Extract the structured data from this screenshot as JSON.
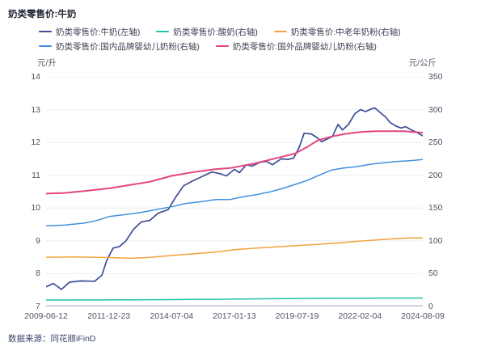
{
  "title": "奶类零售价:牛奶",
  "source_text": "数据来源：同花顺iFinD",
  "axis_units": {
    "left": "元/升",
    "right": "元/公斤"
  },
  "chart_data": {
    "type": "line",
    "title": "奶类零售价:牛奶",
    "grid": true,
    "legend_position": "top",
    "x_ticks": [
      "2009-06-12",
      "2011-12-23",
      "2014-07-04",
      "2017-01-13",
      "2019-07-19",
      "2022-02-04",
      "2024-08-09"
    ],
    "left_axis": {
      "label": "元/升",
      "min": 7,
      "max": 14,
      "ticks": [
        14,
        13,
        12,
        11,
        10,
        9,
        8,
        7
      ]
    },
    "right_axis": {
      "label": "元/公斤",
      "min": 0,
      "max": 350,
      "ticks": [
        350,
        300,
        250,
        200,
        150,
        100,
        50,
        0
      ]
    },
    "series": [
      {
        "name": "奶类零售价:牛奶(左轴)",
        "axis": "left",
        "color": "#3f4e96",
        "width": 1.7,
        "points": [
          [
            0,
            7.6
          ],
          [
            0.019,
            7.7
          ],
          [
            0.041,
            7.52
          ],
          [
            0.062,
            7.74
          ],
          [
            0.092,
            7.78
          ],
          [
            0.129,
            7.77
          ],
          [
            0.148,
            7.95
          ],
          [
            0.161,
            8.4
          ],
          [
            0.178,
            8.78
          ],
          [
            0.195,
            8.83
          ],
          [
            0.212,
            9.0
          ],
          [
            0.232,
            9.35
          ],
          [
            0.253,
            9.58
          ],
          [
            0.275,
            9.62
          ],
          [
            0.298,
            9.85
          ],
          [
            0.324,
            9.95
          ],
          [
            0.345,
            10.35
          ],
          [
            0.365,
            10.68
          ],
          [
            0.388,
            10.82
          ],
          [
            0.416,
            10.97
          ],
          [
            0.44,
            11.1
          ],
          [
            0.461,
            11.05
          ],
          [
            0.479,
            10.98
          ],
          [
            0.5,
            11.18
          ],
          [
            0.513,
            11.08
          ],
          [
            0.532,
            11.32
          ],
          [
            0.547,
            11.28
          ],
          [
            0.569,
            11.4
          ],
          [
            0.586,
            11.42
          ],
          [
            0.601,
            11.32
          ],
          [
            0.624,
            11.5
          ],
          [
            0.642,
            11.48
          ],
          [
            0.657,
            11.52
          ],
          [
            0.672,
            11.85
          ],
          [
            0.685,
            12.28
          ],
          [
            0.704,
            12.26
          ],
          [
            0.719,
            12.15
          ],
          [
            0.732,
            12.02
          ],
          [
            0.745,
            12.1
          ],
          [
            0.76,
            12.18
          ],
          [
            0.775,
            12.55
          ],
          [
            0.787,
            12.38
          ],
          [
            0.803,
            12.55
          ],
          [
            0.82,
            12.88
          ],
          [
            0.835,
            13.0
          ],
          [
            0.848,
            12.94
          ],
          [
            0.863,
            13.02
          ],
          [
            0.873,
            13.05
          ],
          [
            0.886,
            12.92
          ],
          [
            0.901,
            12.78
          ],
          [
            0.914,
            12.6
          ],
          [
            0.929,
            12.5
          ],
          [
            0.942,
            12.44
          ],
          [
            0.955,
            12.48
          ],
          [
            0.97,
            12.38
          ],
          [
            0.985,
            12.3
          ],
          [
            1,
            12.2
          ]
        ]
      },
      {
        "name": "奶类零售价:酸奶(右轴)",
        "axis": "right",
        "color": "#23c2ae",
        "width": 1.5,
        "points": [
          [
            0,
            9.9
          ],
          [
            0.15,
            10.0
          ],
          [
            0.3,
            10.4
          ],
          [
            0.45,
            11.0
          ],
          [
            0.6,
            11.8
          ],
          [
            0.75,
            12.4
          ],
          [
            0.9,
            12.8
          ],
          [
            1,
            12.8
          ]
        ]
      },
      {
        "name": "奶类零售价:中老年奶粉(右轴)",
        "axis": "right",
        "color": "#f2a23c",
        "width": 1.5,
        "points": [
          [
            0,
            75
          ],
          [
            0.08,
            75.5
          ],
          [
            0.17,
            74.5
          ],
          [
            0.22,
            73.5
          ],
          [
            0.27,
            74.5
          ],
          [
            0.31,
            76.5
          ],
          [
            0.35,
            78.5
          ],
          [
            0.42,
            81.5
          ],
          [
            0.46,
            83.5
          ],
          [
            0.5,
            86.5
          ],
          [
            0.56,
            89
          ],
          [
            0.63,
            91.5
          ],
          [
            0.67,
            93
          ],
          [
            0.72,
            94.5
          ],
          [
            0.78,
            97
          ],
          [
            0.83,
            99.5
          ],
          [
            0.88,
            101.5
          ],
          [
            0.93,
            103.5
          ],
          [
            0.97,
            104.5
          ],
          [
            1,
            104.5
          ]
        ]
      },
      {
        "name": "奶类零售价:国内品牌婴幼儿奶粉(右轴)",
        "axis": "right",
        "color": "#4190dd",
        "width": 1.5,
        "points": [
          [
            0,
            123
          ],
          [
            0.049,
            124
          ],
          [
            0.101,
            127
          ],
          [
            0.135,
            131
          ],
          [
            0.167,
            137
          ],
          [
            0.21,
            140
          ],
          [
            0.249,
            143
          ],
          [
            0.296,
            148
          ],
          [
            0.333,
            152
          ],
          [
            0.371,
            157
          ],
          [
            0.414,
            160
          ],
          [
            0.451,
            163
          ],
          [
            0.489,
            163
          ],
          [
            0.521,
            167
          ],
          [
            0.564,
            171
          ],
          [
            0.597,
            175
          ],
          [
            0.629,
            180
          ],
          [
            0.661,
            186
          ],
          [
            0.693,
            192
          ],
          [
            0.725,
            200
          ],
          [
            0.758,
            208
          ],
          [
            0.79,
            211
          ],
          [
            0.822,
            213
          ],
          [
            0.865,
            217
          ],
          [
            0.897,
            219
          ],
          [
            0.929,
            221
          ],
          [
            0.961,
            222
          ],
          [
            1,
            224
          ]
        ]
      },
      {
        "name": "奶类零售价:国外品牌婴幼儿奶粉(右轴)",
        "axis": "right",
        "color": "#e5457e",
        "width": 2,
        "points": [
          [
            0,
            172
          ],
          [
            0.049,
            173
          ],
          [
            0.101,
            176
          ],
          [
            0.167,
            180
          ],
          [
            0.221,
            185
          ],
          [
            0.275,
            190
          ],
          [
            0.333,
            199
          ],
          [
            0.393,
            205
          ],
          [
            0.446,
            209
          ],
          [
            0.489,
            211
          ],
          [
            0.554,
            218
          ],
          [
            0.618,
            227
          ],
          [
            0.661,
            233
          ],
          [
            0.693,
            243
          ],
          [
            0.721,
            253
          ],
          [
            0.758,
            259
          ],
          [
            0.794,
            263
          ],
          [
            0.833,
            266
          ],
          [
            0.875,
            267
          ],
          [
            0.918,
            267
          ],
          [
            0.951,
            267
          ],
          [
            0.972,
            266
          ],
          [
            1,
            265
          ]
        ]
      }
    ],
    "legend_rows": [
      [
        0,
        1,
        2
      ],
      [
        3,
        4
      ]
    ],
    "colors": {
      "grid": "#edeef3",
      "axis_line": "#bcc2d0",
      "tick_text": "#4e5362"
    }
  }
}
